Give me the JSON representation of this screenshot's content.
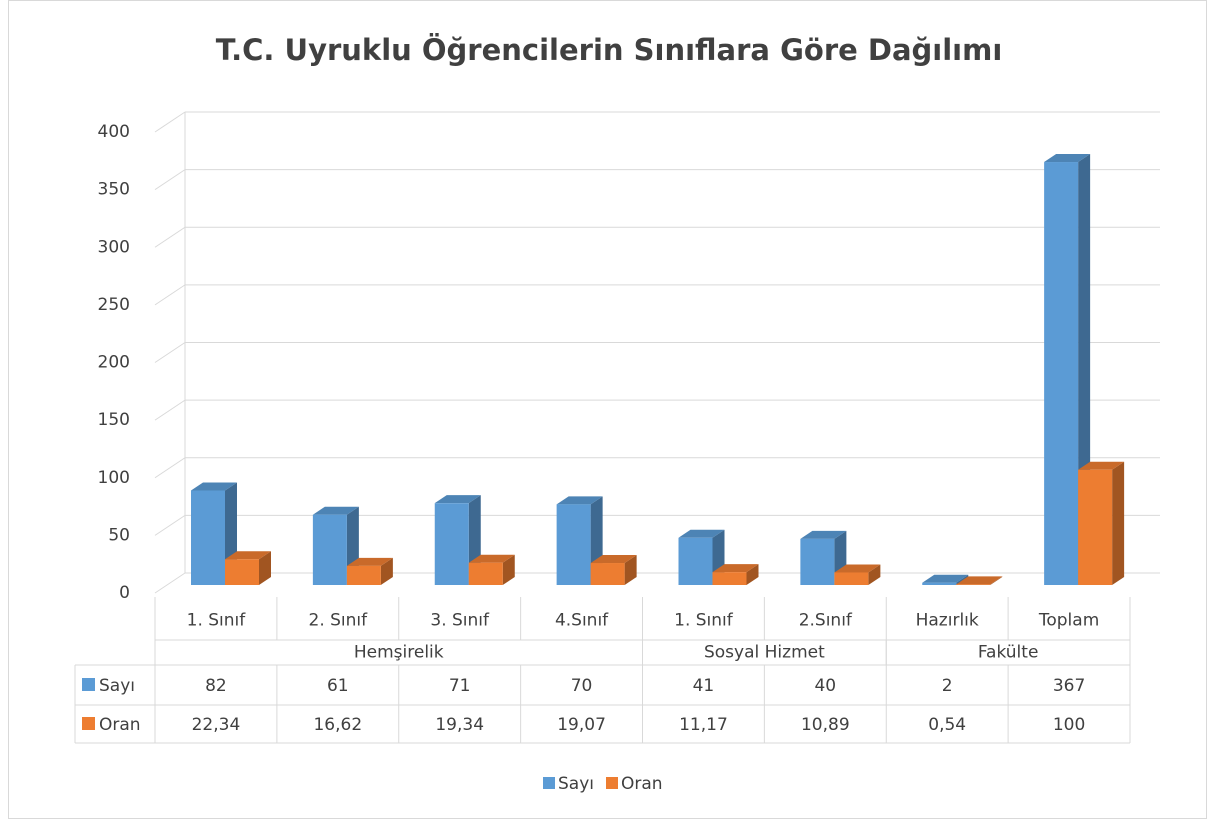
{
  "chart_data": {
    "type": "bar",
    "title": "T.C. Uyruklu Öğrencilerin Sınıflara Göre Dağılımı",
    "categories": [
      "1. Sınıf",
      "2. Sınıf",
      "3. Sınıf",
      "4.Sınıf",
      "1. Sınıf",
      "2.Sınıf",
      "Hazırlık",
      "Toplam"
    ],
    "groups": [
      {
        "name": "Hemşirelik",
        "count": 4
      },
      {
        "name": "Sosyal Hizmet",
        "count": 2
      },
      {
        "name": "Fakülte",
        "count": 2
      }
    ],
    "series": [
      {
        "name": "Sayı",
        "color": "#5b9bd5",
        "values": [
          82,
          61,
          71,
          70,
          41,
          40,
          2,
          367
        ]
      },
      {
        "name": "Oran",
        "color": "#ed7d31",
        "values": [
          22.34,
          16.62,
          19.34,
          19.07,
          11.17,
          10.89,
          0.54,
          100
        ],
        "value_labels": [
          "22,34",
          "16,62",
          "19,34",
          "19,07",
          "11,17",
          "10,89",
          "0,54",
          "100"
        ]
      }
    ],
    "ylim": [
      0,
      400
    ],
    "yticks": [
      0,
      50,
      100,
      150,
      200,
      250,
      300,
      350,
      400
    ],
    "grid": true,
    "legend": "bottom"
  }
}
